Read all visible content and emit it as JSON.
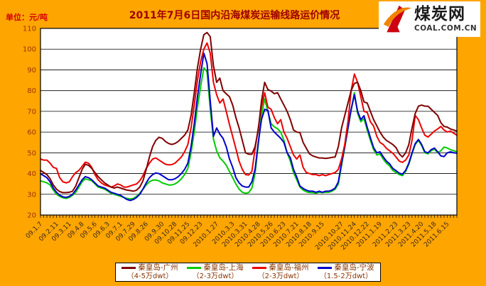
{
  "header": {
    "title": "2011年7月6日国内沿海煤炭运输线路运价情况",
    "unit_label": "单位：元/吨"
  },
  "logo": {
    "cn": "煤炭网",
    "en": "COAL.COM.CN"
  },
  "colors": {
    "background": "#FFA500",
    "plot_background": "#FFFFFF",
    "title_text": "#A00000",
    "unit_text": "#D40000",
    "y_axis_text": "#993300",
    "x_axis_text": "#3A2A1A",
    "grid_line": "#000000",
    "legend_text": "#883300"
  },
  "chart_data": {
    "type": "line",
    "title": "2011年7月6日国内沿海煤炭运输线路运价情况",
    "ylabel": "元/吨",
    "ylim": [
      20,
      110
    ],
    "ytick_step": 10,
    "grid": true,
    "legend_position": "bottom",
    "n_points": 131,
    "x_tick_labels": [
      "09.1.7",
      "09.2.11",
      "09.3.11",
      "09.4.8",
      "09.5.6",
      "09.6.3",
      "09.7.1",
      "09.7.29",
      "09.8.26",
      "09.9.30",
      "09.10.28",
      "09.11.25",
      "09.12.23",
      "2010.1.27",
      "2010.3.3",
      "2010.3.31",
      "2010.4.28",
      "2010.5.26",
      "2010.6.23",
      "2010.7.21",
      "2010.8.18",
      "2010.9.15",
      "2010.10.27",
      "2010.11.24",
      "2010.12.22",
      "2011.1.19",
      "2011.2.23",
      "2011.3.23",
      "2011.4.20",
      "2011.5.18",
      "2011.6.15"
    ],
    "x_tick_positions": [
      0,
      5,
      9,
      13,
      17,
      21,
      25,
      29,
      33,
      38,
      42,
      46,
      50,
      55,
      60,
      64,
      68,
      72,
      76,
      80,
      84,
      88,
      94,
      98,
      102,
      106,
      111,
      115,
      119,
      123,
      127
    ],
    "series": [
      {
        "name": "秦皇岛-广州",
        "size": "（4-5万dwt）",
        "color": "#800000",
        "values": [
          41.5,
          40.5,
          39.5,
          37.5,
          34.5,
          32.5,
          31.3,
          30.8,
          30.8,
          31,
          31.5,
          34,
          38,
          42,
          44.5,
          44,
          42.5,
          40.5,
          38.5,
          37,
          35.5,
          34.5,
          33.5,
          33,
          33.5,
          33,
          32.5,
          32,
          31.8,
          31.5,
          32,
          33.5,
          36.5,
          42,
          48,
          53,
          56,
          57.5,
          57,
          55.5,
          54.5,
          54,
          54.5,
          55.5,
          57,
          58.5,
          61,
          68,
          79,
          91,
          100,
          107,
          108,
          106,
          92,
          84,
          86,
          80,
          78.5,
          77,
          73,
          67,
          62,
          56,
          50,
          49.3,
          49.3,
          53,
          61,
          75,
          84,
          80.5,
          79.8,
          78.5,
          79,
          76,
          73,
          70,
          66,
          61,
          60,
          59.8,
          55,
          52.2,
          49.5,
          48.5,
          48,
          47.5,
          47.5,
          47.3,
          47.5,
          47.8,
          48,
          53,
          62,
          68,
          74,
          80,
          83.5,
          84,
          80,
          74.5,
          74,
          70,
          66,
          63,
          60,
          57.6,
          56,
          55,
          54,
          52.5,
          49.5,
          48,
          50,
          54,
          62,
          69,
          72.5,
          73,
          72.5,
          72.5,
          71,
          69.5,
          68,
          64.5,
          62.7,
          62.4,
          61.5,
          61,
          60.5
        ]
      },
      {
        "name": "秦皇岛-上海",
        "size": "（2-3万dwt）",
        "color": "#00CC00",
        "values": [
          36.5,
          36,
          35.5,
          34.5,
          32,
          30,
          29,
          28.3,
          28,
          28.5,
          29.5,
          31,
          33.5,
          36,
          37.5,
          37,
          36.5,
          35,
          33.5,
          33,
          32.5,
          31.5,
          30.5,
          30,
          29.5,
          29,
          28.5,
          28,
          27.8,
          28,
          29,
          30.5,
          32.5,
          34.5,
          36,
          36.8,
          36.9,
          36.5,
          35.5,
          35,
          34.5,
          34.5,
          35,
          36,
          37.5,
          39.5,
          42.5,
          50,
          60,
          72,
          82,
          91,
          89,
          71,
          56.6,
          51,
          47.6,
          46,
          44,
          41,
          38,
          35,
          32.5,
          31,
          30.5,
          30.8,
          33,
          40,
          54,
          68,
          76,
          70,
          64,
          62.5,
          61.6,
          60,
          56,
          50,
          46,
          40.5,
          37,
          33.5,
          32,
          31.2,
          30.8,
          30.8,
          30.5,
          31,
          30.8,
          31,
          31,
          31.5,
          32.5,
          35,
          44,
          52.5,
          61.5,
          70.5,
          79,
          69,
          65,
          66.5,
          61,
          56,
          51.5,
          49,
          49.5,
          47,
          45,
          43.7,
          41.5,
          40.5,
          39.5,
          39,
          41,
          44.5,
          49.5,
          54,
          56,
          53.5,
          50,
          49.5,
          51,
          51.8,
          50,
          51,
          52.8,
          52.3,
          51.5,
          51,
          50.6
        ]
      },
      {
        "name": "秦皇岛-福州",
        "size": "（2-3万dwt）",
        "color": "#EE0000",
        "values": [
          47,
          46.5,
          46.5,
          45,
          43,
          42.5,
          38,
          36,
          35.5,
          36,
          38.5,
          40.5,
          41.5,
          43.5,
          45.5,
          45,
          43,
          39.5,
          37,
          35.5,
          34.5,
          34,
          33.5,
          34,
          35,
          34.5,
          33.5,
          33.5,
          34,
          34.5,
          35,
          36.5,
          39,
          42.5,
          45,
          47,
          47.5,
          46.5,
          45.5,
          44.5,
          44.2,
          44.3,
          45,
          46.5,
          48,
          50.5,
          54,
          62,
          73,
          85,
          94,
          100,
          103,
          98,
          84,
          78,
          74,
          76,
          70,
          63.6,
          57.8,
          52,
          46,
          42,
          39.5,
          39.3,
          41,
          52,
          62,
          72,
          79,
          72,
          71,
          67,
          64,
          66,
          60,
          57,
          53,
          49,
          47,
          49,
          43,
          40.5,
          40,
          39.5,
          39.5,
          39,
          39.5,
          39,
          39.5,
          40,
          40.5,
          42,
          47,
          54,
          65,
          80,
          88,
          84,
          77,
          70,
          69.5,
          65,
          62.9,
          58,
          55,
          54,
          52.2,
          51,
          49.8,
          48,
          46,
          45.4,
          46.5,
          49,
          56,
          68,
          66,
          62,
          58.5,
          57.6,
          59,
          60.5,
          61.5,
          62.7,
          61,
          60,
          60.5,
          59.5,
          58.5
        ]
      },
      {
        "name": "秦皇岛-宁波",
        "size": "（1.5-2万dwt）",
        "color": "#0000CC",
        "values": [
          40,
          39,
          38,
          36,
          33,
          31,
          29.5,
          28.8,
          28.5,
          29,
          30,
          32,
          34.5,
          37,
          38.5,
          38,
          37,
          35.5,
          34,
          33.5,
          33,
          32,
          31,
          30.5,
          30,
          29.5,
          28.5,
          27.5,
          27,
          27.5,
          28.5,
          30,
          32.5,
          35.5,
          38,
          39.5,
          40.3,
          40,
          39,
          38,
          37,
          37,
          37.5,
          38.5,
          40,
          42,
          45,
          53,
          64,
          77,
          88,
          98,
          93,
          75,
          58,
          62,
          59,
          57,
          53,
          47,
          43,
          38,
          35.5,
          34,
          33.5,
          33.5,
          36,
          42,
          55,
          66,
          71,
          70.5,
          62,
          60,
          58.5,
          57,
          55,
          50,
          47.6,
          42,
          38.3,
          34,
          32.8,
          32,
          31.5,
          31.5,
          31,
          31.5,
          31,
          31.5,
          31.5,
          32,
          33,
          36,
          45,
          53,
          62,
          71,
          78,
          70,
          66,
          67.9,
          62.3,
          57.3,
          52.5,
          50,
          50.5,
          48.1,
          46,
          44.7,
          42.5,
          41.4,
          40.2,
          39.7,
          41.5,
          45,
          50,
          54.5,
          56.4,
          54,
          50.5,
          50,
          51.5,
          52.3,
          50.5,
          48.5,
          48.2,
          50,
          50.5,
          50,
          49.8
        ]
      }
    ]
  }
}
